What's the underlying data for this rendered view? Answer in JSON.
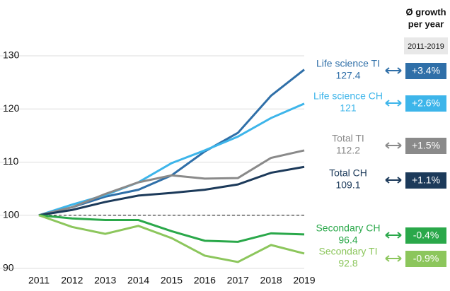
{
  "chart_data": {
    "type": "line",
    "header": [
      "Ø growth",
      "per year"
    ],
    "period": "2011-2019",
    "x": [
      2011,
      2012,
      2013,
      2014,
      2015,
      2016,
      2017,
      2018,
      2019
    ],
    "xlim": [
      2011,
      2019
    ],
    "ylim": [
      90,
      130
    ],
    "yticks": [
      90,
      100,
      110,
      120,
      130
    ],
    "grid": true,
    "reference_line": 100,
    "series": [
      {
        "name": "Life science TI",
        "color": "#2f6fa8",
        "values": [
          100,
          101.5,
          103.5,
          104.8,
          107.5,
          112,
          115.5,
          122.5,
          127.4
        ],
        "growth": "+3.4%"
      },
      {
        "name": "Life science CH",
        "color": "#3db5ea",
        "values": [
          100,
          102,
          103.8,
          106.2,
          109.8,
          112.2,
          114.8,
          118.3,
          121.0
        ],
        "growth": "+2.6%"
      },
      {
        "name": "Total TI",
        "color": "#8a8a8a",
        "values": [
          100,
          101.5,
          104,
          106.2,
          107.5,
          106.9,
          107.0,
          110.8,
          112.2
        ],
        "growth": "+1.5%"
      },
      {
        "name": "Total CH",
        "color": "#1c3a5a",
        "values": [
          100,
          101.0,
          102.5,
          103.7,
          104.2,
          104.8,
          105.8,
          108.0,
          109.1
        ],
        "growth": "+1.1%"
      },
      {
        "name": "Secondary CH",
        "color": "#2aa84a",
        "values": [
          100,
          99.4,
          99.1,
          99.1,
          97.0,
          95.2,
          95.0,
          96.6,
          96.4
        ],
        "growth": "-0.4%"
      },
      {
        "name": "Secondary TI",
        "color": "#8cc65c",
        "values": [
          100,
          97.8,
          96.5,
          98.0,
          95.7,
          92.4,
          91.2,
          94.4,
          92.8
        ],
        "growth": "-0.9%"
      }
    ]
  }
}
